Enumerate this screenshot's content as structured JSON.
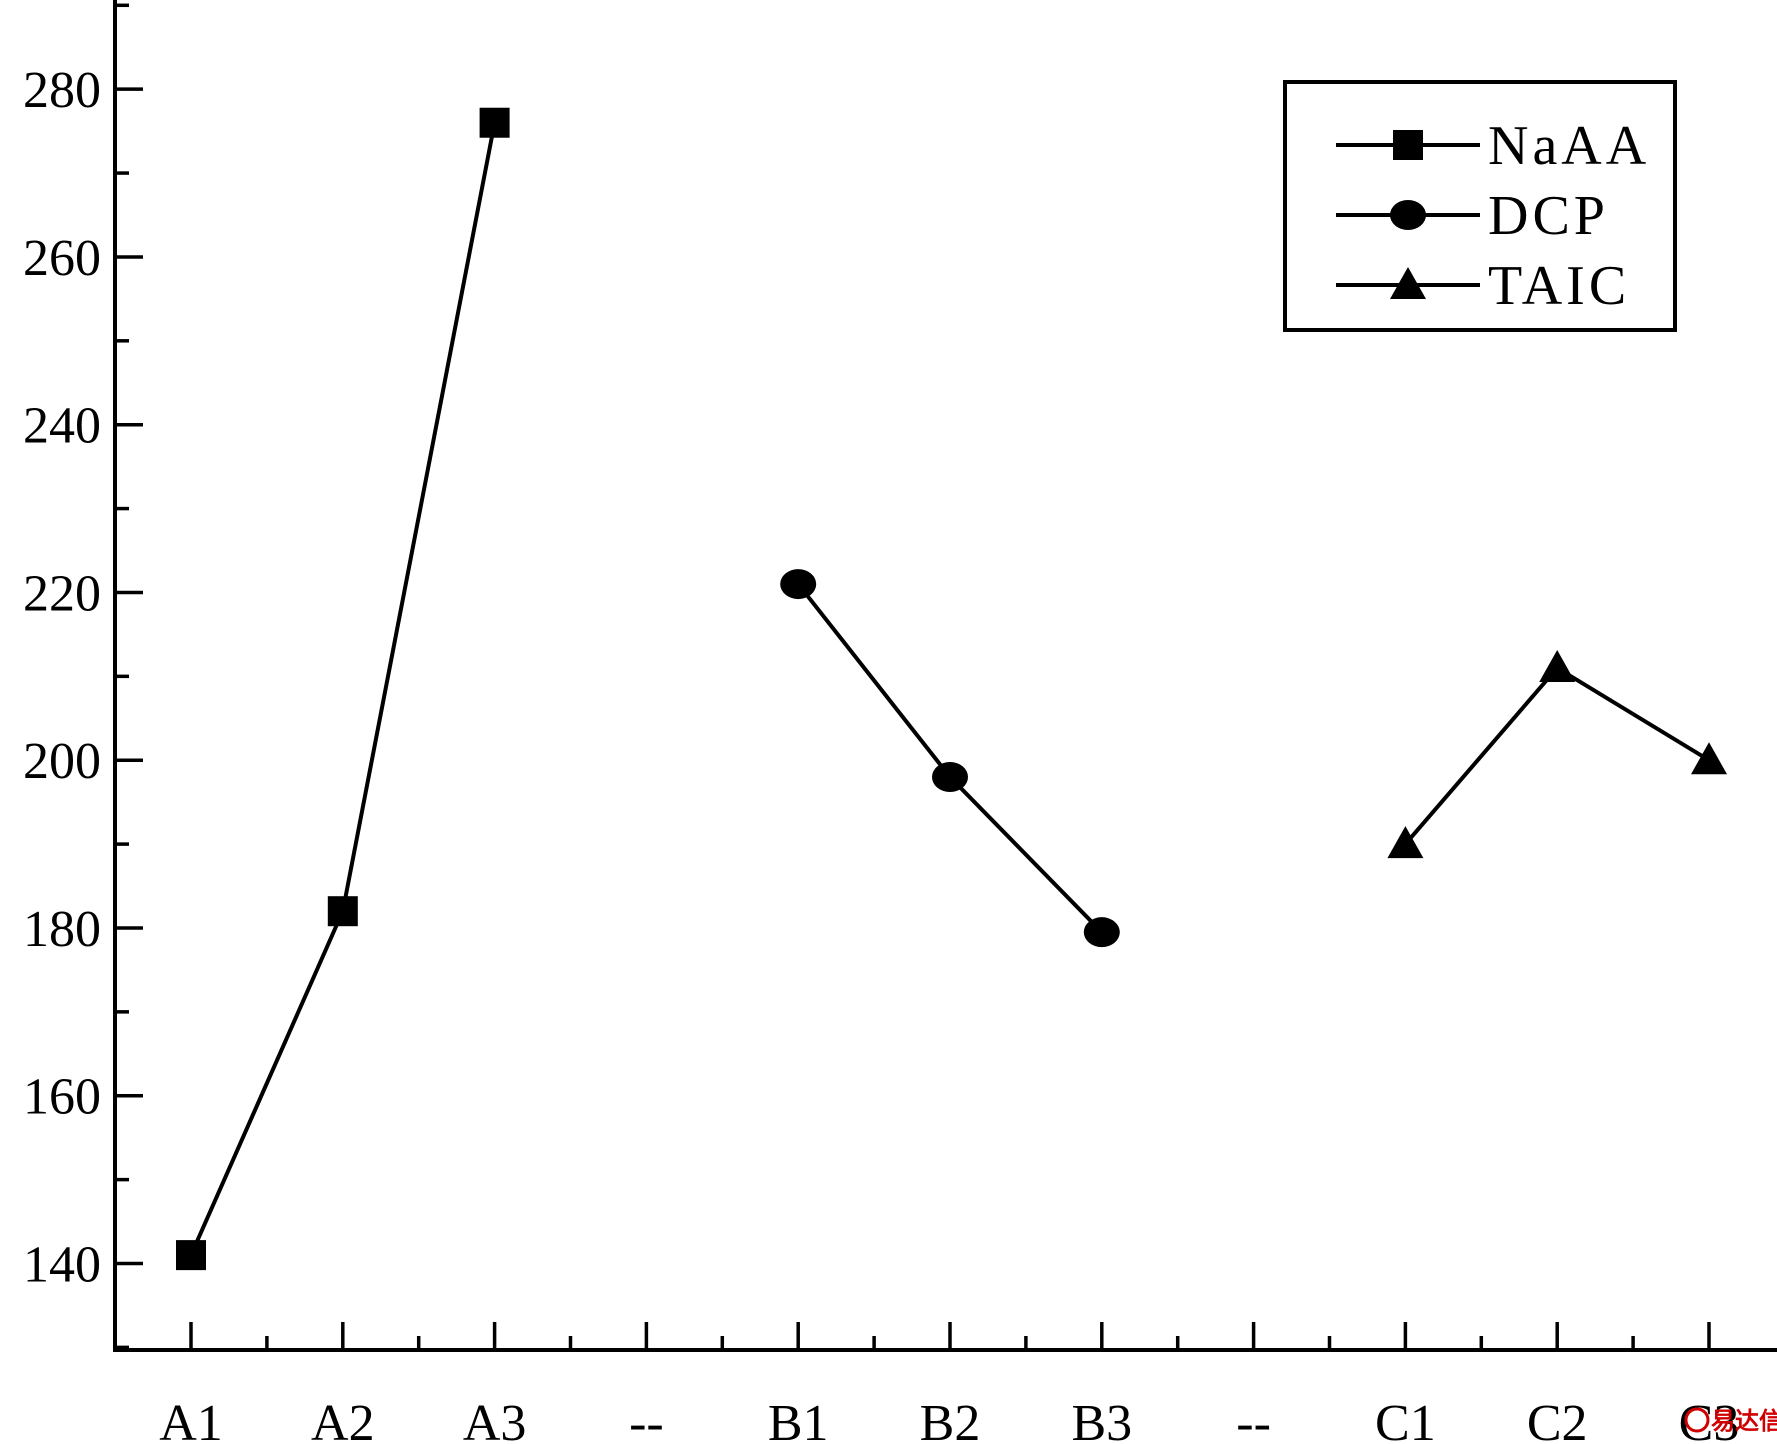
{
  "chart_data": {
    "type": "line",
    "title": "",
    "xlabel": "",
    "ylabel": "",
    "categories": [
      "A1",
      "A2",
      "A3",
      "--",
      "B1",
      "B2",
      "B3",
      "--",
      "C1",
      "C2",
      "C3"
    ],
    "ylim": [
      130,
      290
    ],
    "yticks": [
      140,
      160,
      180,
      200,
      220,
      240,
      260,
      280
    ],
    "y_minor_step": 10,
    "grid": false,
    "legend_position": "top-right",
    "series": [
      {
        "name": "NaAA",
        "marker": "square",
        "x": [
          "A1",
          "A2",
          "A3"
        ],
        "values": [
          141,
          182,
          276
        ]
      },
      {
        "name": "DCP",
        "marker": "circle",
        "x": [
          "B1",
          "B2",
          "B3"
        ],
        "values": [
          221,
          198,
          179.5
        ]
      },
      {
        "name": "TAIC",
        "marker": "triangle",
        "x": [
          "C1",
          "C2",
          "C3"
        ],
        "values": [
          190,
          211,
          200
        ]
      }
    ],
    "line_color": "#000000"
  },
  "watermark": {
    "text": "易达信",
    "color": "#d00000"
  }
}
